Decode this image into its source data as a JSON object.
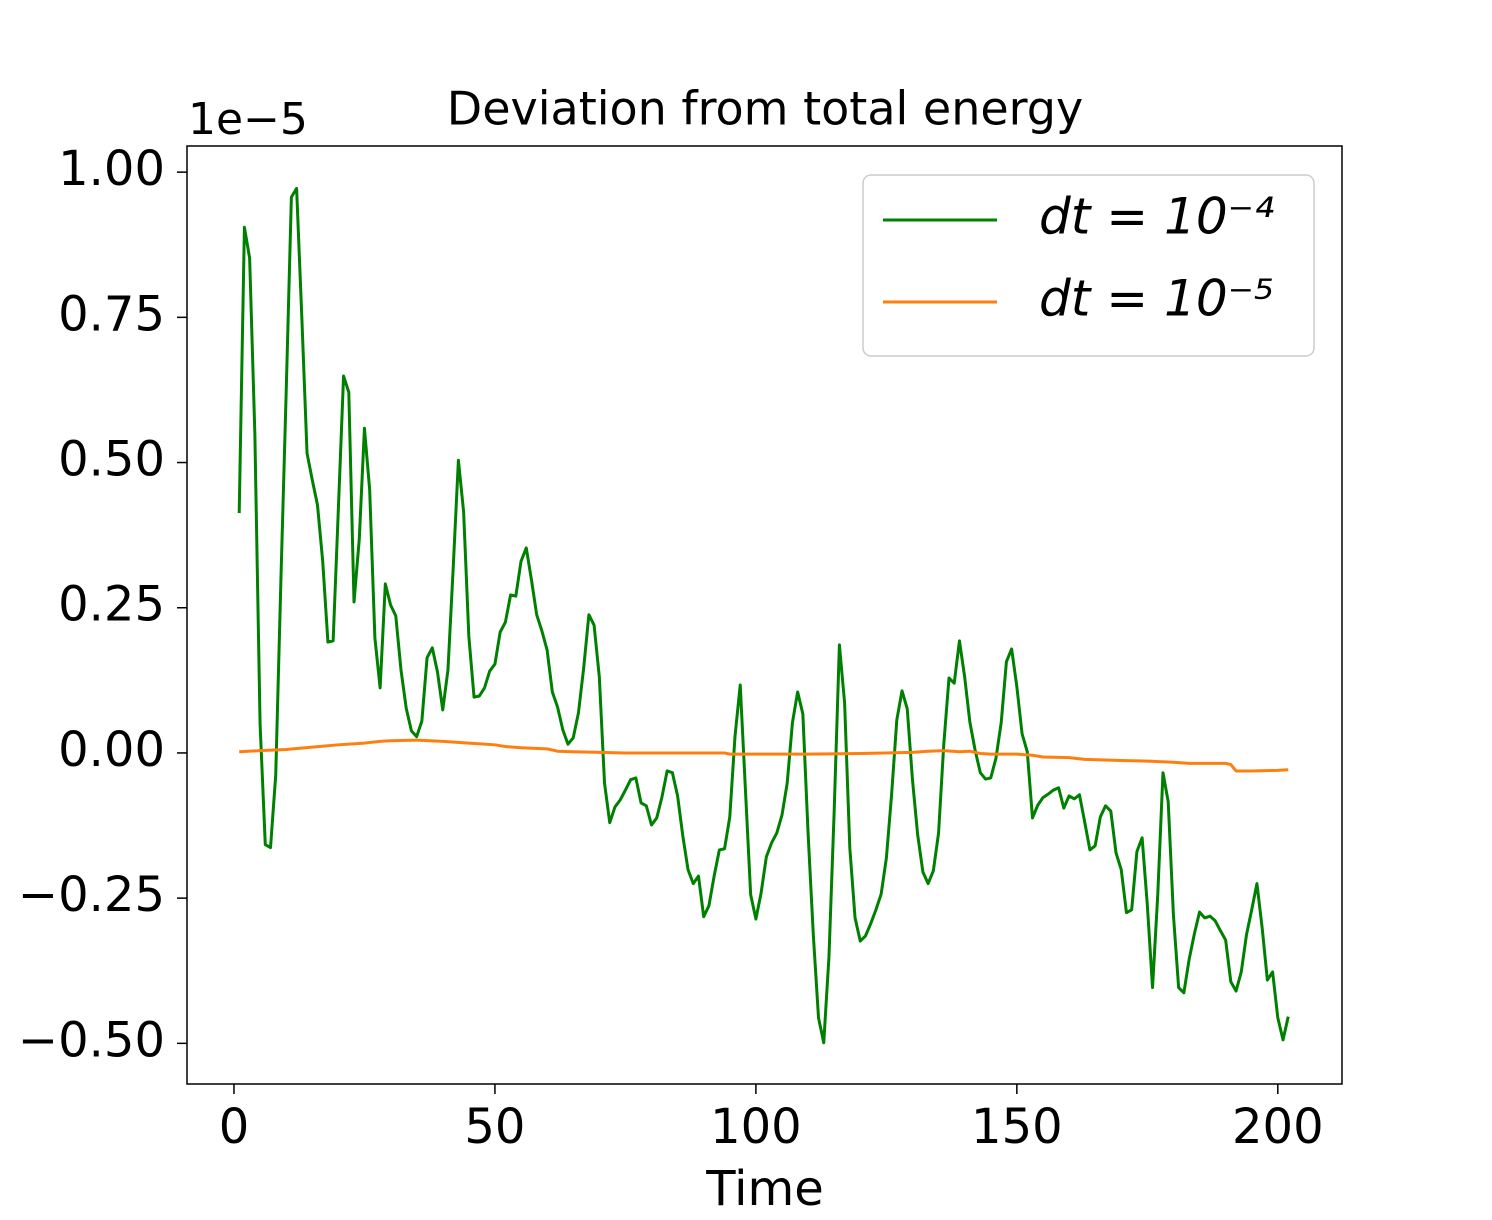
{
  "chart_data": {
    "type": "line",
    "title": "Deviation from total energy",
    "x_label": "Time",
    "offset_text": "1e−5",
    "xlim": [
      -9.0,
      212.3
    ],
    "ylim": [
      -0.57,
      1.045
    ],
    "xticks": [
      0,
      50,
      100,
      150,
      200
    ],
    "yticks": [
      {
        "value": -0.5,
        "label": "−0.50"
      },
      {
        "value": -0.25,
        "label": "−0.25"
      },
      {
        "value": 0,
        "label": "0.00"
      },
      0.25,
      {
        "value": 0.5,
        "label": "0.50"
      },
      0.75,
      {
        "value": 1,
        "label": "1.00"
      }
    ],
    "grid": false,
    "legend": "upper right",
    "series": [
      {
        "name": "dt = 10⁻⁴",
        "color": "#008000",
        "x": [
          1,
          2,
          3,
          4,
          5,
          6,
          7,
          8,
          9,
          10,
          11,
          12,
          13,
          14,
          15,
          16,
          17,
          18,
          19,
          20,
          21,
          22,
          23,
          24,
          25,
          26,
          27,
          28,
          29,
          30,
          31,
          32,
          33,
          34,
          35,
          36,
          37,
          38,
          39,
          40,
          41,
          42,
          43,
          44,
          45,
          46,
          47,
          48,
          49,
          50,
          51,
          52,
          53,
          54,
          55,
          56,
          57,
          58,
          59,
          60,
          61,
          62,
          63,
          64,
          65,
          66,
          67,
          68,
          69,
          70,
          71,
          72,
          73,
          74,
          75,
          76,
          77,
          78,
          79,
          80,
          81,
          82,
          83,
          84,
          85,
          86,
          87,
          88,
          89,
          90,
          91,
          92,
          93,
          94,
          95,
          96,
          97,
          98,
          99,
          100,
          101,
          102,
          103,
          104,
          105,
          106,
          107,
          108,
          109,
          110,
          111,
          112,
          113,
          114,
          115,
          116,
          117,
          118,
          119,
          120,
          121,
          122,
          123,
          124,
          125,
          126,
          127,
          128,
          129,
          130,
          131,
          132,
          133,
          134,
          135,
          136,
          137,
          138,
          139,
          140,
          141,
          142,
          143,
          144,
          145,
          146,
          147,
          148,
          149,
          150,
          151,
          152,
          153,
          154,
          155,
          156,
          157,
          158,
          159,
          160,
          161,
          162,
          163,
          164,
          165,
          166,
          167,
          168,
          169,
          170,
          171,
          172,
          173,
          174,
          175,
          176,
          177,
          178,
          179,
          180,
          181,
          182,
          183,
          184,
          185,
          186,
          187,
          188,
          189,
          190,
          191,
          192,
          193,
          194,
          195,
          196,
          197,
          198,
          199,
          200,
          201,
          202
        ],
        "values": [
          0.413,
          0.905,
          0.852,
          0.55,
          0.05,
          -0.158,
          -0.163,
          -0.038,
          0.3,
          0.62,
          0.957,
          0.972,
          0.75,
          0.516,
          0.47,
          0.427,
          0.33,
          0.191,
          0.193,
          0.42,
          0.649,
          0.621,
          0.26,
          0.367,
          0.559,
          0.453,
          0.198,
          0.112,
          0.291,
          0.255,
          0.236,
          0.143,
          0.077,
          0.038,
          0.028,
          0.055,
          0.164,
          0.181,
          0.139,
          0.074,
          0.143,
          0.318,
          0.504,
          0.415,
          0.201,
          0.096,
          0.098,
          0.112,
          0.141,
          0.153,
          0.208,
          0.225,
          0.272,
          0.27,
          0.33,
          0.353,
          0.298,
          0.238,
          0.21,
          0.177,
          0.105,
          0.079,
          0.04,
          0.015,
          0.026,
          0.069,
          0.146,
          0.238,
          0.22,
          0.131,
          -0.052,
          -0.12,
          -0.093,
          -0.081,
          -0.064,
          -0.046,
          -0.043,
          -0.086,
          -0.091,
          -0.124,
          -0.112,
          -0.076,
          -0.031,
          -0.034,
          -0.074,
          -0.143,
          -0.201,
          -0.225,
          -0.212,
          -0.282,
          -0.263,
          -0.212,
          -0.167,
          -0.165,
          -0.11,
          0.029,
          0.117,
          -0.064,
          -0.244,
          -0.286,
          -0.241,
          -0.179,
          -0.155,
          -0.138,
          -0.107,
          -0.052,
          0.052,
          0.105,
          0.067,
          -0.138,
          -0.313,
          -0.456,
          -0.499,
          -0.351,
          -0.1,
          0.186,
          0.086,
          -0.164,
          -0.284,
          -0.324,
          -0.315,
          -0.294,
          -0.27,
          -0.243,
          -0.181,
          -0.072,
          0.057,
          0.107,
          0.076,
          -0.046,
          -0.141,
          -0.205,
          -0.225,
          -0.203,
          -0.138,
          0.015,
          0.129,
          0.12,
          0.193,
          0.131,
          0.053,
          0.005,
          -0.034,
          -0.045,
          -0.043,
          -0.009,
          0.052,
          0.157,
          0.179,
          0.114,
          0.033,
          0.002,
          -0.112,
          -0.09,
          -0.077,
          -0.071,
          -0.064,
          -0.06,
          -0.095,
          -0.074,
          -0.079,
          -0.072,
          -0.119,
          -0.167,
          -0.16,
          -0.11,
          -0.091,
          -0.1,
          -0.172,
          -0.201,
          -0.275,
          -0.27,
          -0.17,
          -0.146,
          -0.262,
          -0.404,
          -0.244,
          -0.034,
          -0.084,
          -0.279,
          -0.404,
          -0.413,
          -0.356,
          -0.312,
          -0.274,
          -0.284,
          -0.281,
          -0.289,
          -0.306,
          -0.322,
          -0.394,
          -0.41,
          -0.377,
          -0.313,
          -0.27,
          -0.225,
          -0.301,
          -0.391,
          -0.377,
          -0.456,
          -0.494,
          -0.454
        ]
      },
      {
        "name": "dt = 10⁻⁵",
        "color": "#ff7f0e",
        "x": [
          1,
          5,
          10,
          15,
          20,
          25,
          28,
          30,
          35,
          40,
          45,
          50,
          52,
          55,
          60,
          62,
          65,
          70,
          75,
          80,
          90,
          94,
          95,
          100,
          110,
          120,
          130,
          133,
          136,
          139,
          141,
          143,
          145,
          150,
          153,
          155,
          160,
          163,
          170,
          175,
          180,
          183,
          190,
          191,
          192,
          195,
          200,
          202
        ],
        "values": [
          0.002,
          0.004,
          0.006,
          0.01,
          0.014,
          0.017,
          0.02,
          0.021,
          0.022,
          0.02,
          0.017,
          0.014,
          0.011,
          0.009,
          0.007,
          0.003,
          0.002,
          0.001,
          0,
          0,
          0,
          0,
          -0.002,
          -0.002,
          -0.002,
          -0.001,
          0.001,
          0.003,
          0.004,
          0.002,
          0.003,
          -0.001,
          -0.002,
          -0.002,
          -0.004,
          -0.007,
          -0.008,
          -0.011,
          -0.013,
          -0.014,
          -0.016,
          -0.018,
          -0.018,
          -0.02,
          -0.031,
          -0.031,
          -0.03,
          -0.029
        ]
      }
    ]
  }
}
